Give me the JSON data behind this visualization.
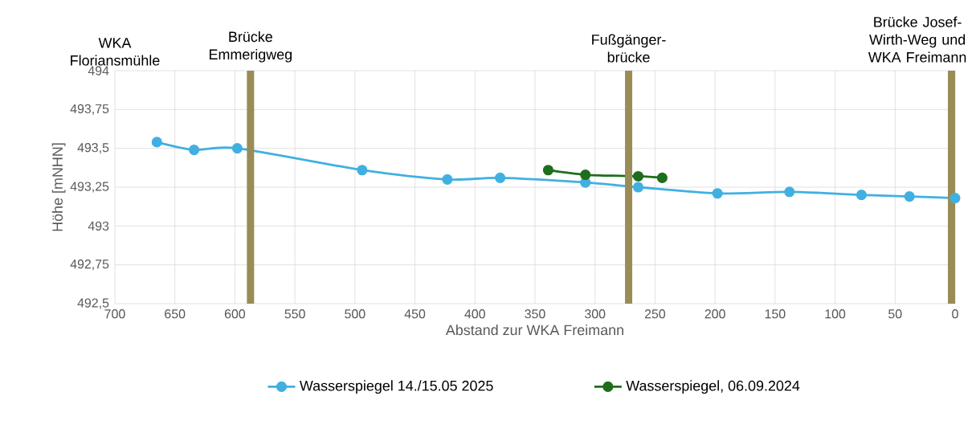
{
  "chart_data": {
    "type": "line",
    "xlabel": "Abstand zur WKA Freimann",
    "ylabel": "Höhe [mNHN]",
    "xlim": [
      700,
      0
    ],
    "xticks": [
      700,
      650,
      600,
      550,
      500,
      450,
      400,
      350,
      300,
      250,
      200,
      150,
      100,
      50,
      0
    ],
    "ylim": [
      492.5,
      494
    ],
    "yticks": [
      {
        "value": 492.5,
        "label": "492,5"
      },
      {
        "value": 492.75,
        "label": "492,75"
      },
      {
        "value": 493,
        "label": "493"
      },
      {
        "value": 493.25,
        "label": "493,25"
      },
      {
        "value": 493.5,
        "label": "493,5"
      },
      {
        "value": 493.75,
        "label": "493,75"
      },
      {
        "value": 494,
        "label": "494"
      }
    ],
    "grid": true,
    "legend": "bottom",
    "marker": "circle",
    "line_style": "solid",
    "series": [
      {
        "name": "Wasserspiegel 14./15.05 2025",
        "color": "#41b0e0",
        "x": [
          665,
          634,
          598,
          494,
          423,
          379,
          308,
          264,
          198,
          138,
          78,
          38,
          0
        ],
        "values": [
          493.54,
          493.49,
          493.5,
          493.36,
          493.3,
          493.31,
          493.28,
          493.25,
          493.21,
          493.22,
          493.2,
          493.19,
          493.18
        ]
      },
      {
        "name": "Wasserspiegel, 06.09.2024",
        "color": "#1e6e1e",
        "x": [
          339,
          308,
          264,
          244
        ],
        "values": [
          493.36,
          493.33,
          493.32,
          493.31
        ]
      }
    ],
    "ref_lines": [
      {
        "axis": "x",
        "value": 587,
        "label": "Brücke Emmerigweg",
        "color": "#9a8c55"
      },
      {
        "axis": "x",
        "value": 272,
        "label": "Fußgänger-brücke",
        "color": "#9a8c55"
      },
      {
        "axis": "x",
        "value": 3,
        "label": "Brücke Josef-Wirth-Weg und WKA Freimann",
        "color": "#9a8c55"
      }
    ],
    "annotations": [
      "WKA Floriansmühle"
    ]
  }
}
